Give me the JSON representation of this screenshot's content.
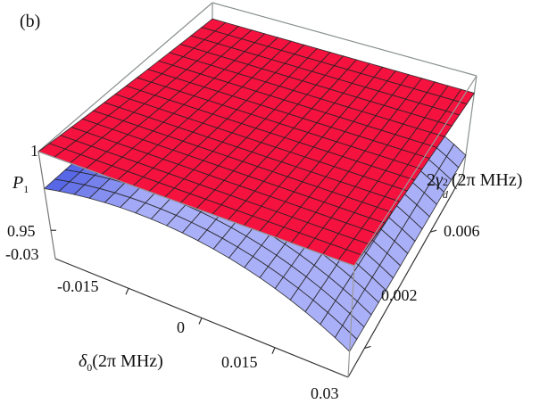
{
  "chart_data": {
    "type": "surface3d",
    "panel_label": "(b)",
    "zlabel": {
      "main": "P",
      "sub": "1"
    },
    "xlabel": {
      "symbol": "δ",
      "sub": "0",
      "unit": "(2π MHz)"
    },
    "ylabel": {
      "prefix": "2",
      "symbol": "γ",
      "sub": "d",
      "sup": "2",
      "unit": "(2π MHz)"
    },
    "xlim": [
      -0.03,
      0.03
    ],
    "ylim": [
      0.001,
      0.008
    ],
    "zlim": [
      0.932,
      1.0
    ],
    "x_ticks": [
      "-0.03",
      "-0.015",
      "0",
      "0.015",
      "0.03"
    ],
    "y_ticks": [
      "0.002",
      "0.006"
    ],
    "z_ticks": [
      "0.95",
      "1"
    ],
    "series": [
      {
        "name": "red-surface",
        "color": "#f5123f",
        "model": "z = 1 - 0.012*(y-0.001)/0.007",
        "z_corners": {
          "x-0.03_y0.001": 1.0,
          "x0.03_y0.001": 1.0,
          "x-0.03_y0.008": 0.988,
          "x0.03_y0.008": 0.988
        }
      },
      {
        "name": "blue-surface",
        "color": "#aab0f8",
        "model": "z = 0.983 - 20*(x+0.012)^2 - 0.4*(y-0.001)",
        "z_samples": {
          "x-0.03": 0.976,
          "x-0.012": 0.983,
          "x0.03": 0.948
        }
      }
    ],
    "grid": {
      "red_cells": [
        20,
        16
      ],
      "blue_cells": [
        20,
        16
      ]
    }
  }
}
